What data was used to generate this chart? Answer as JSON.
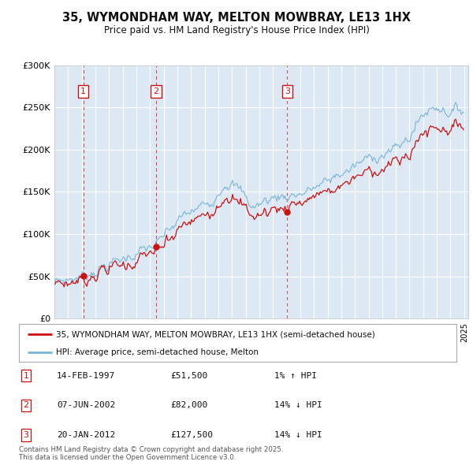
{
  "title": "35, WYMONDHAM WAY, MELTON MOWBRAY, LE13 1HX",
  "subtitle": "Price paid vs. HM Land Registry's House Price Index (HPI)",
  "ylim": [
    0,
    300000
  ],
  "yticks": [
    0,
    50000,
    100000,
    150000,
    200000,
    250000,
    300000
  ],
  "ytick_labels": [
    "£0",
    "£50K",
    "£100K",
    "£150K",
    "£200K",
    "£250K",
    "£300K"
  ],
  "hpi_color": "#7ab4d4",
  "price_color": "#cc1111",
  "dashed_color": "#cc1111",
  "bg_color": "#dce9f5",
  "grid_color": "#ffffff",
  "sale_times": [
    1997.12,
    2002.44,
    2012.05
  ],
  "sale_prices": [
    51500,
    82000,
    127500
  ],
  "sale_labels": [
    "1",
    "2",
    "3"
  ],
  "legend_house": "35, WYMONDHAM WAY, MELTON MOWBRAY, LE13 1HX (semi-detached house)",
  "legend_hpi": "HPI: Average price, semi-detached house, Melton",
  "table_entries": [
    {
      "num": "1",
      "date": "14-FEB-1997",
      "price": "£51,500",
      "change": "1% ↑ HPI"
    },
    {
      "num": "2",
      "date": "07-JUN-2002",
      "price": "£82,000",
      "change": "14% ↓ HPI"
    },
    {
      "num": "3",
      "date": "20-JAN-2012",
      "price": "£127,500",
      "change": "14% ↓ HPI"
    }
  ],
  "footnote": "Contains HM Land Registry data © Crown copyright and database right 2025.\nThis data is licensed under the Open Government Licence v3.0."
}
